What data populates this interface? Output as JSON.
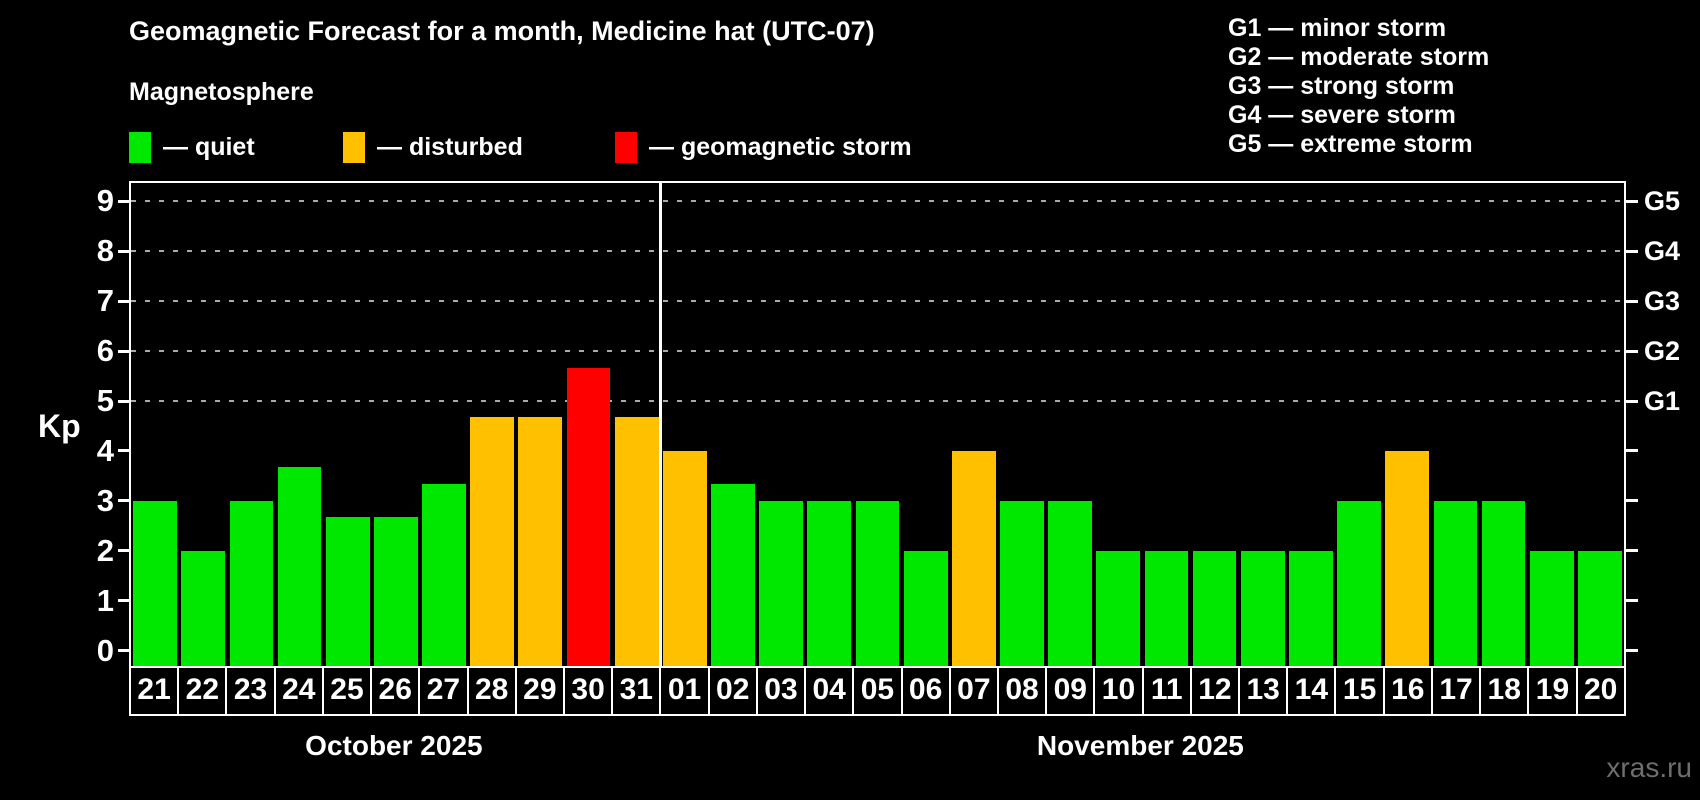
{
  "header": {
    "title": "Geomagnetic Forecast for a month, Medicine hat (UTC-07)",
    "subtitle": "Magnetosphere",
    "dash": "—",
    "legend": [
      {
        "status": "quiet",
        "label": "quiet",
        "color": "#00e800"
      },
      {
        "status": "disturbed",
        "label": "disturbed",
        "color": "#ffc000"
      },
      {
        "status": "storm",
        "label": "geomagnetic storm",
        "color": "#ff0000"
      }
    ]
  },
  "storm_scale_legend": [
    {
      "code": "G1",
      "label": "minor storm"
    },
    {
      "code": "G2",
      "label": "moderate storm"
    },
    {
      "code": "G3",
      "label": "strong storm"
    },
    {
      "code": "G4",
      "label": "severe storm"
    },
    {
      "code": "G5",
      "label": "extreme storm"
    }
  ],
  "chart_data": {
    "type": "bar",
    "title": "Geomagnetic Forecast for a month, Medicine hat (UTC-07)",
    "ylabel": "Kp",
    "ylim": [
      0,
      9.4
    ],
    "yticks": [
      0,
      1,
      2,
      3,
      4,
      5,
      6,
      7,
      8,
      9
    ],
    "gridline_values": [
      5,
      6,
      7,
      8,
      9
    ],
    "grid": "dashed, only at storm levels 5-9",
    "right_axis": [
      {
        "value": 5,
        "label": "G1"
      },
      {
        "value": 6,
        "label": "G2"
      },
      {
        "value": 7,
        "label": "G3"
      },
      {
        "value": 8,
        "label": "G4"
      },
      {
        "value": 9,
        "label": "G5"
      }
    ],
    "status_colors": {
      "quiet": "#00e800",
      "disturbed": "#ffc000",
      "storm": "#ff0000"
    },
    "months": [
      {
        "label": "October 2025",
        "days": [
          {
            "day": "21",
            "kp": 3.0,
            "status": "quiet"
          },
          {
            "day": "22",
            "kp": 2.0,
            "status": "quiet"
          },
          {
            "day": "23",
            "kp": 3.0,
            "status": "quiet"
          },
          {
            "day": "24",
            "kp": 3.67,
            "status": "quiet"
          },
          {
            "day": "25",
            "kp": 2.67,
            "status": "quiet"
          },
          {
            "day": "26",
            "kp": 2.67,
            "status": "quiet"
          },
          {
            "day": "27",
            "kp": 3.33,
            "status": "quiet"
          },
          {
            "day": "28",
            "kp": 4.67,
            "status": "disturbed"
          },
          {
            "day": "29",
            "kp": 4.67,
            "status": "disturbed"
          },
          {
            "day": "30",
            "kp": 5.67,
            "status": "storm"
          },
          {
            "day": "31",
            "kp": 4.67,
            "status": "disturbed"
          }
        ]
      },
      {
        "label": "November 2025",
        "days": [
          {
            "day": "01",
            "kp": 4.0,
            "status": "disturbed"
          },
          {
            "day": "02",
            "kp": 3.33,
            "status": "quiet"
          },
          {
            "day": "03",
            "kp": 3.0,
            "status": "quiet"
          },
          {
            "day": "04",
            "kp": 3.0,
            "status": "quiet"
          },
          {
            "day": "05",
            "kp": 3.0,
            "status": "quiet"
          },
          {
            "day": "06",
            "kp": 2.0,
            "status": "quiet"
          },
          {
            "day": "07",
            "kp": 4.0,
            "status": "disturbed"
          },
          {
            "day": "08",
            "kp": 3.0,
            "status": "quiet"
          },
          {
            "day": "09",
            "kp": 3.0,
            "status": "quiet"
          },
          {
            "day": "10",
            "kp": 2.0,
            "status": "quiet"
          },
          {
            "day": "11",
            "kp": 2.0,
            "status": "quiet"
          },
          {
            "day": "12",
            "kp": 2.0,
            "status": "quiet"
          },
          {
            "day": "13",
            "kp": 2.0,
            "status": "quiet"
          },
          {
            "day": "14",
            "kp": 2.0,
            "status": "quiet"
          },
          {
            "day": "15",
            "kp": 3.0,
            "status": "quiet"
          },
          {
            "day": "16",
            "kp": 4.0,
            "status": "disturbed"
          },
          {
            "day": "17",
            "kp": 3.0,
            "status": "quiet"
          },
          {
            "day": "18",
            "kp": 3.0,
            "status": "quiet"
          },
          {
            "day": "19",
            "kp": 2.0,
            "status": "quiet"
          },
          {
            "day": "20",
            "kp": 2.0,
            "status": "quiet"
          }
        ]
      }
    ]
  },
  "watermark": "xras.ru",
  "colors": {
    "background": "#000000",
    "text": "#ffffff",
    "axis": "#ffffff",
    "gridline": "#aaaaaa",
    "watermark": "#6e6e6e"
  }
}
